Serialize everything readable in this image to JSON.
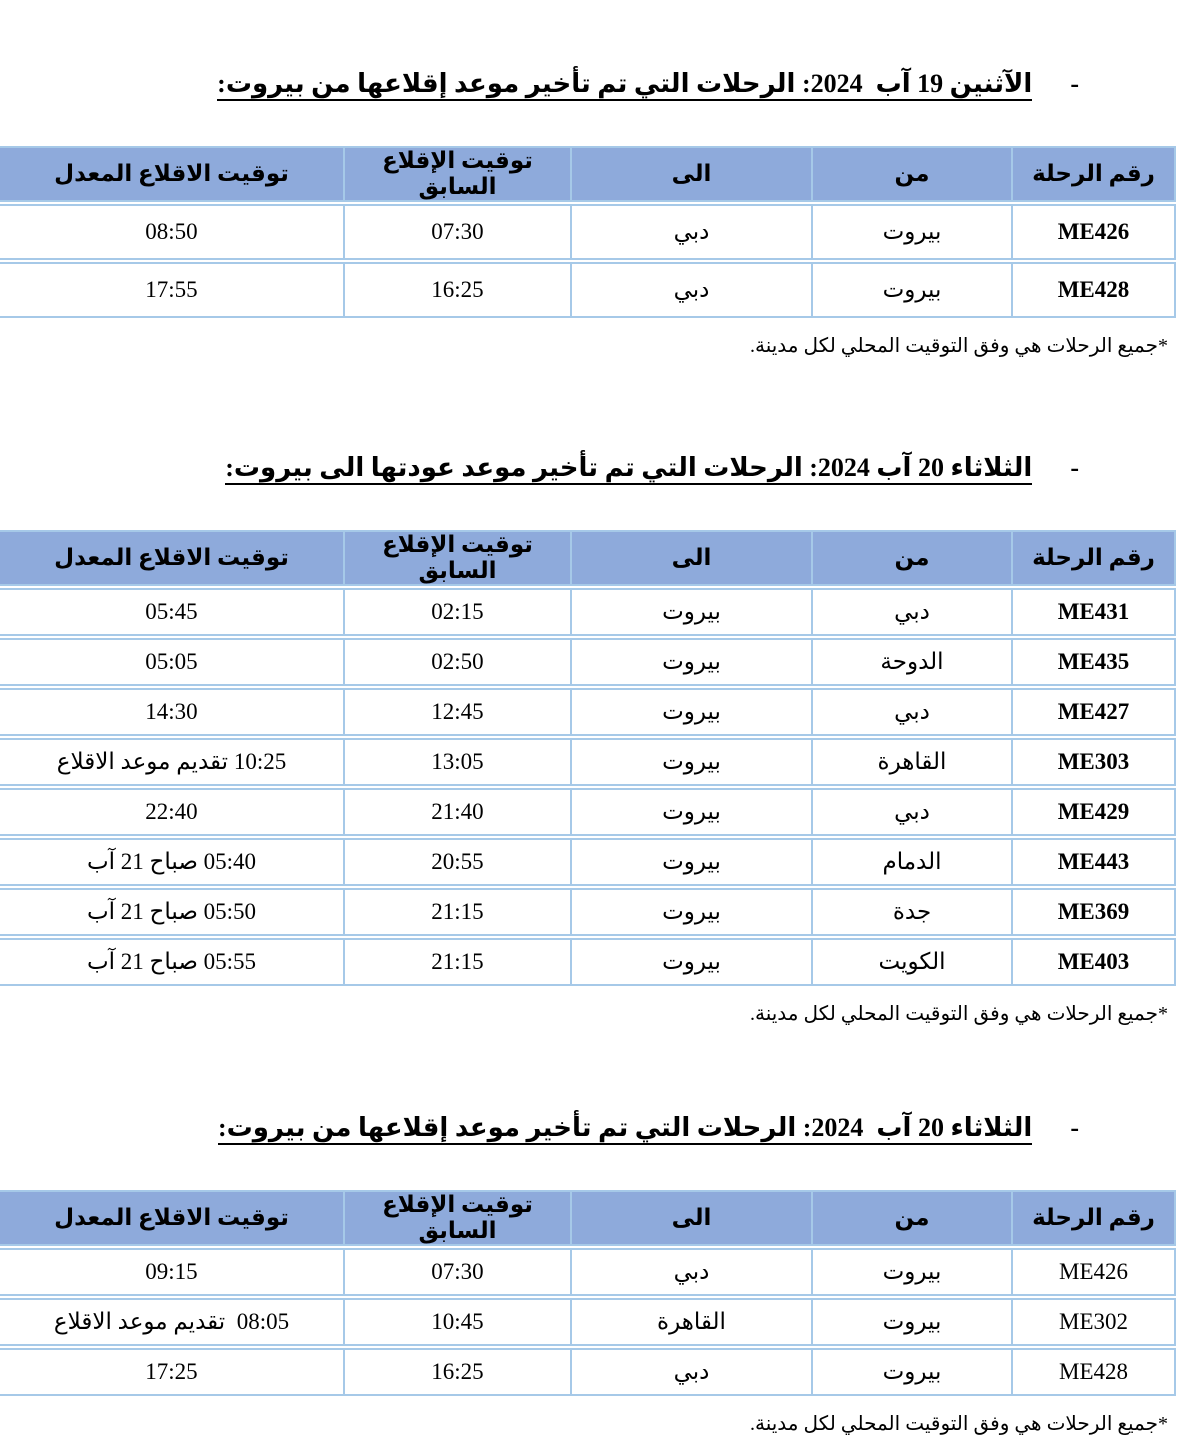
{
  "colors": {
    "header_bg": "#8EAADB",
    "table_border": "#A6C9E8",
    "text": "#000000",
    "page_bg": "#FFFFFF"
  },
  "document": {
    "sections": [
      {
        "bullet": "-",
        "heading": "الآثنين 19 آب  2024: الرحلات التي تم تأخير موعد إقلاعها من بيروت:",
        "columns": [
          "رقم الرحلة",
          "من",
          "الى",
          "توقيت الإقلاع السابق",
          "توقيت الاقلاع المعدل"
        ],
        "flight_numbers_bold": true,
        "rows": [
          [
            "ME426",
            "بيروت",
            "دبي",
            "07:30",
            "08:50"
          ],
          [
            "ME428",
            "بيروت",
            "دبي",
            "16:25",
            "17:55"
          ]
        ],
        "footnote": "*جميع الرحلات هي وفق التوقيت المحلي لكل مدينة."
      },
      {
        "bullet": "-",
        "heading": "الثلاثاء 20 آب 2024: الرحلات التي تم تأخير موعد عودتها الى بيروت:",
        "columns": [
          "رقم الرحلة",
          "من",
          "الى",
          "توقيت الإقلاع السابق",
          "توقيت الاقلاع المعدل"
        ],
        "flight_numbers_bold": true,
        "rows": [
          [
            "ME431",
            "دبي",
            "بيروت",
            "02:15",
            "05:45"
          ],
          [
            "ME435",
            "الدوحة",
            "بيروت",
            "02:50",
            "05:05"
          ],
          [
            "ME427",
            "دبي",
            "بيروت",
            "12:45",
            "14:30"
          ],
          [
            "ME303",
            "القاهرة",
            "بيروت",
            "13:05",
            "10:25 تقديم موعد الاقلاع"
          ],
          [
            "ME429",
            "دبي",
            "بيروت",
            "21:40",
            "22:40"
          ],
          [
            "ME443",
            "الدمام",
            "بيروت",
            "20:55",
            "05:40 صباح 21 آب"
          ],
          [
            "ME369",
            "جدة",
            "بيروت",
            "21:15",
            "05:50 صباح 21 آب"
          ],
          [
            "ME403",
            "الكويت",
            "بيروت",
            "21:15",
            "05:55 صباح 21 آب"
          ]
        ],
        "footnote": "*جميع الرحلات هي وفق التوقيت المحلي لكل مدينة."
      },
      {
        "bullet": "-",
        "heading": "الثلاثاء 20 آب  2024: الرحلات التي تم تأخير موعد إقلاعها من بيروت:",
        "columns": [
          "رقم الرحلة",
          "من",
          "الى",
          "توقيت الإقلاع السابق",
          "توقيت الاقلاع المعدل"
        ],
        "flight_numbers_bold": false,
        "rows": [
          [
            "ME426",
            "بيروت",
            "دبي",
            "07:30",
            "09:15"
          ],
          [
            "ME302",
            "بيروت",
            "القاهرة",
            "10:45",
            "08:05  تقديم موعد الاقلاع"
          ],
          [
            "ME428",
            "بيروت",
            "دبي",
            "16:25",
            "17:25"
          ]
        ],
        "footnote": "*جميع الرحلات هي وفق التوقيت المحلي لكل مدينة."
      }
    ]
  }
}
